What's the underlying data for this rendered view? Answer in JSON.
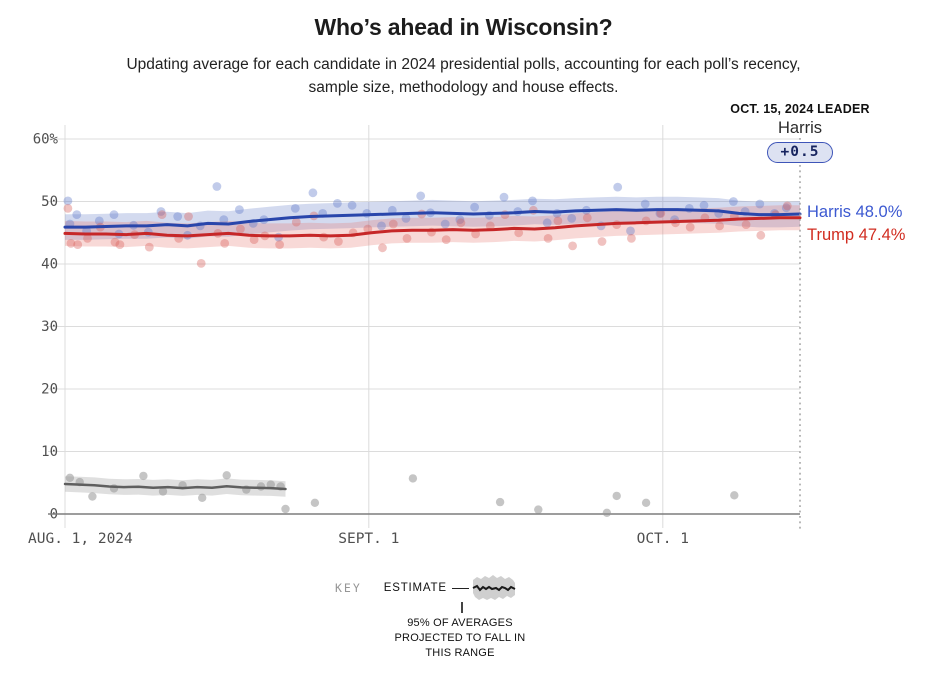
{
  "page": {
    "title": "Who’s ahead in Wisconsin?",
    "subtitle_line1": "Updating average for each candidate in 2024 presidential polls, accounting for each poll’s recency,",
    "subtitle_line2": "sample size, methodology and house effects."
  },
  "leader": {
    "label": "OCT. 15, 2024 LEADER",
    "name": "Harris",
    "margin": "+0.5"
  },
  "end_labels": {
    "harris": "Harris 48.0%",
    "trump": "Trump 47.4%"
  },
  "key": {
    "label": "KEY",
    "estimate": "ESTIMATE",
    "note_line1": "95% OF AVERAGES",
    "note_line2": "PROJECTED TO FALL IN",
    "note_line3": "THIS RANGE"
  },
  "colors": {
    "harris_line": "#2946ab",
    "harris_label": "#3c59d1",
    "trump_line": "#c62728",
    "trump_label": "#d12c20",
    "third_line": "#5f5f5f",
    "gridline": "#dcdcdc",
    "axis": "#7d7d7d",
    "tick_text": "#4f4f4f",
    "dotted_line": "#9a9a9a",
    "badge_bg": "#dde2f2",
    "badge_border": "#3e55b8"
  },
  "chart_data": {
    "type": "line",
    "title": "Who’s ahead in Wisconsin?",
    "x_unit": "days since Aug 1, 2024",
    "x_max": 75,
    "grid": true,
    "annotation_line_day": 75,
    "annotation_date": "OCT. 15, 2024",
    "y_ticks": [
      {
        "v": 60,
        "label": "60%"
      },
      {
        "v": 50,
        "label": "50"
      },
      {
        "v": 40,
        "label": "40"
      },
      {
        "v": 30,
        "label": "30"
      },
      {
        "v": 20,
        "label": "20"
      },
      {
        "v": 10,
        "label": "10"
      },
      {
        "v": 0,
        "label": "0"
      }
    ],
    "x_ticks": [
      {
        "day": 0,
        "label": "AUG. 1, 2024",
        "align": "left"
      },
      {
        "day": 31,
        "label": "SEPT. 1",
        "align": "center"
      },
      {
        "day": 61,
        "label": "OCT. 1",
        "align": "center"
      }
    ],
    "series": [
      {
        "id": "harris",
        "label": "Harris",
        "end_value": 48.0,
        "color": "#2946ab",
        "line_width": 3,
        "band_color": "rgba(108,134,201,0.30)",
        "band_half_width": 2.05,
        "x": [
          0,
          2.08,
          4.17,
          6.25,
          8.33,
          10.42,
          12.5,
          14.58,
          16.67,
          18.75,
          20.83,
          22.92,
          25,
          27.08,
          29.17,
          31.25,
          33.33,
          35.42,
          37.5,
          39.58,
          41.67,
          43.75,
          45.83,
          47.92,
          50,
          52.08,
          54.17,
          56.25,
          58.33,
          60.42,
          62.5,
          64.58,
          66.67,
          68.75,
          70.83,
          72.92,
          75
        ],
        "values": [
          45.9,
          45.9,
          46.0,
          46.1,
          46.1,
          46.3,
          46.1,
          46.5,
          46.4,
          46.8,
          47.1,
          47.4,
          47.6,
          47.7,
          47.8,
          47.9,
          48.0,
          48.1,
          48.2,
          48.1,
          48.0,
          48.1,
          48.2,
          48.4,
          48.3,
          48.5,
          48.6,
          48.7,
          48.6,
          48.7,
          48.7,
          48.6,
          48.5,
          48.1,
          47.9,
          47.9,
          48.0
        ]
      },
      {
        "id": "trump",
        "label": "Trump",
        "end_value": 47.4,
        "color": "#c62728",
        "line_width": 3,
        "band_color": "rgba(229,118,112,0.28)",
        "band_half_width": 2.0,
        "x": [
          0,
          2.08,
          4.17,
          6.25,
          8.33,
          10.42,
          12.5,
          14.58,
          16.67,
          18.75,
          20.83,
          22.92,
          25,
          27.08,
          29.17,
          31.25,
          33.33,
          35.42,
          37.5,
          39.58,
          41.67,
          43.75,
          45.83,
          47.92,
          50,
          52.08,
          54.17,
          56.25,
          58.33,
          60.42,
          62.5,
          64.58,
          66.67,
          68.75,
          70.83,
          72.92,
          75
        ],
        "values": [
          44.9,
          44.8,
          44.8,
          44.7,
          44.9,
          44.6,
          44.5,
          44.7,
          44.9,
          44.6,
          44.5,
          44.5,
          44.6,
          44.5,
          44.6,
          45.0,
          45.3,
          45.4,
          45.4,
          45.5,
          45.4,
          45.5,
          45.7,
          45.6,
          45.8,
          46.1,
          46.3,
          46.5,
          46.6,
          46.7,
          46.8,
          46.9,
          47.0,
          47.2,
          47.3,
          47.4,
          47.4
        ]
      },
      {
        "id": "third_party",
        "label": "",
        "end_value": null,
        "color": "#5f5f5f",
        "line_width": 2.5,
        "band_color": "rgba(178,178,178,0.42)",
        "band_half_width": 1.25,
        "x": [
          0,
          1.5,
          3,
          4.5,
          6,
          7.5,
          9,
          10.5,
          12,
          13.5,
          15,
          16.5,
          18,
          19.5,
          21,
          22.5
        ],
        "values": [
          4.8,
          4.7,
          4.6,
          4.4,
          4.3,
          4.35,
          4.2,
          4.3,
          4.15,
          4.3,
          4.2,
          4.45,
          4.25,
          4.2,
          4.15,
          4.0
        ]
      }
    ],
    "scatter": [
      {
        "series": "harris",
        "color": "rgba(92,118,200,0.38)",
        "radius": 4.4,
        "points": [
          [
            0.3,
            50.1
          ],
          [
            0.5,
            46.4
          ],
          [
            1.2,
            47.9
          ],
          [
            2.2,
            45.3
          ],
          [
            3.5,
            46.9
          ],
          [
            5,
            47.9
          ],
          [
            5.5,
            44.8
          ],
          [
            7,
            46.2
          ],
          [
            8.5,
            45.1
          ],
          [
            9.8,
            48.4
          ],
          [
            11.5,
            47.6
          ],
          [
            12.5,
            44.6
          ],
          [
            13.8,
            46.1
          ],
          [
            15.5,
            52.4
          ],
          [
            16.2,
            47.1
          ],
          [
            17.8,
            48.7
          ],
          [
            19.2,
            46.5
          ],
          [
            20.3,
            47.1
          ],
          [
            21.8,
            44.3
          ],
          [
            23.5,
            48.9
          ],
          [
            25.3,
            51.4
          ],
          [
            26.3,
            48.1
          ],
          [
            27.8,
            49.7
          ],
          [
            29.3,
            49.4
          ],
          [
            30.8,
            48.1
          ],
          [
            32.3,
            46.1
          ],
          [
            33.4,
            48.6
          ],
          [
            34.8,
            47.3
          ],
          [
            36.3,
            50.9
          ],
          [
            37.3,
            48.2
          ],
          [
            38.8,
            46.4
          ],
          [
            40.3,
            47.1
          ],
          [
            41.8,
            49.1
          ],
          [
            43.3,
            47.8
          ],
          [
            44.8,
            50.7
          ],
          [
            46.2,
            48.4
          ],
          [
            47.7,
            50.1
          ],
          [
            49.2,
            46.6
          ],
          [
            50.2,
            48.1
          ],
          [
            51.7,
            47.3
          ],
          [
            53.2,
            48.6
          ],
          [
            54.7,
            46.1
          ],
          [
            56.4,
            52.3
          ],
          [
            57.7,
            45.3
          ],
          [
            59.2,
            49.6
          ],
          [
            60.7,
            48.1
          ],
          [
            62.2,
            47.1
          ],
          [
            63.7,
            48.9
          ],
          [
            65.2,
            49.4
          ],
          [
            66.7,
            48.1
          ],
          [
            68.2,
            50.0
          ],
          [
            69.4,
            48.4
          ],
          [
            70.9,
            49.6
          ],
          [
            72.4,
            48.1
          ],
          [
            73.6,
            49.0
          ]
        ]
      },
      {
        "series": "trump",
        "color": "rgba(215,95,90,0.38)",
        "radius": 4.4,
        "points": [
          [
            0.3,
            48.9
          ],
          [
            0.6,
            43.3
          ],
          [
            1.3,
            43.1
          ],
          [
            2.3,
            44.1
          ],
          [
            3.6,
            45.9
          ],
          [
            5.1,
            43.5
          ],
          [
            5.6,
            43.1
          ],
          [
            7.1,
            44.7
          ],
          [
            8.6,
            42.7
          ],
          [
            9.9,
            47.9
          ],
          [
            11.6,
            44.1
          ],
          [
            12.6,
            47.6
          ],
          [
            13.9,
            40.1
          ],
          [
            15.6,
            44.9
          ],
          [
            16.3,
            43.3
          ],
          [
            17.9,
            45.6
          ],
          [
            19.3,
            43.9
          ],
          [
            20.4,
            44.5
          ],
          [
            21.9,
            43.1
          ],
          [
            23.6,
            46.7
          ],
          [
            25.4,
            47.7
          ],
          [
            26.4,
            44.3
          ],
          [
            27.9,
            43.6
          ],
          [
            29.4,
            45.0
          ],
          [
            30.9,
            45.6
          ],
          [
            32.4,
            42.6
          ],
          [
            33.5,
            46.4
          ],
          [
            34.9,
            44.1
          ],
          [
            36.4,
            48.0
          ],
          [
            37.4,
            45.1
          ],
          [
            38.9,
            43.9
          ],
          [
            40.4,
            46.6
          ],
          [
            41.9,
            44.8
          ],
          [
            43.4,
            46.1
          ],
          [
            44.9,
            47.9
          ],
          [
            46.3,
            45.0
          ],
          [
            47.8,
            48.6
          ],
          [
            49.3,
            44.1
          ],
          [
            50.3,
            46.9
          ],
          [
            51.8,
            42.9
          ],
          [
            53.3,
            47.4
          ],
          [
            54.8,
            43.6
          ],
          [
            56.3,
            46.3
          ],
          [
            57.8,
            44.1
          ],
          [
            59.3,
            46.9
          ],
          [
            60.8,
            48.1
          ],
          [
            62.3,
            46.6
          ],
          [
            63.8,
            45.9
          ],
          [
            65.3,
            47.4
          ],
          [
            66.8,
            46.1
          ],
          [
            68.3,
            47.6
          ],
          [
            69.5,
            46.3
          ],
          [
            71.0,
            44.6
          ],
          [
            72.5,
            47.9
          ],
          [
            73.7,
            49.3
          ]
        ]
      },
      {
        "series": "third_party",
        "color": "rgba(150,150,150,0.55)",
        "radius": 4.2,
        "points": [
          [
            0.5,
            5.8
          ],
          [
            1.5,
            5.1
          ],
          [
            2.8,
            2.8
          ],
          [
            5,
            4.1
          ],
          [
            8,
            6.1
          ],
          [
            10,
            3.6
          ],
          [
            12,
            4.6
          ],
          [
            14,
            2.6
          ],
          [
            16.5,
            6.2
          ],
          [
            18.5,
            3.9
          ],
          [
            20,
            4.4
          ],
          [
            21,
            4.7
          ],
          [
            22,
            4.4
          ],
          [
            22.5,
            0.8
          ],
          [
            25.5,
            1.8
          ],
          [
            35.5,
            5.7
          ],
          [
            44.4,
            1.9
          ],
          [
            48.3,
            0.7
          ],
          [
            55.3,
            0.2
          ],
          [
            56.3,
            2.9
          ],
          [
            59.3,
            1.8
          ],
          [
            68.3,
            3.0
          ]
        ]
      }
    ]
  }
}
